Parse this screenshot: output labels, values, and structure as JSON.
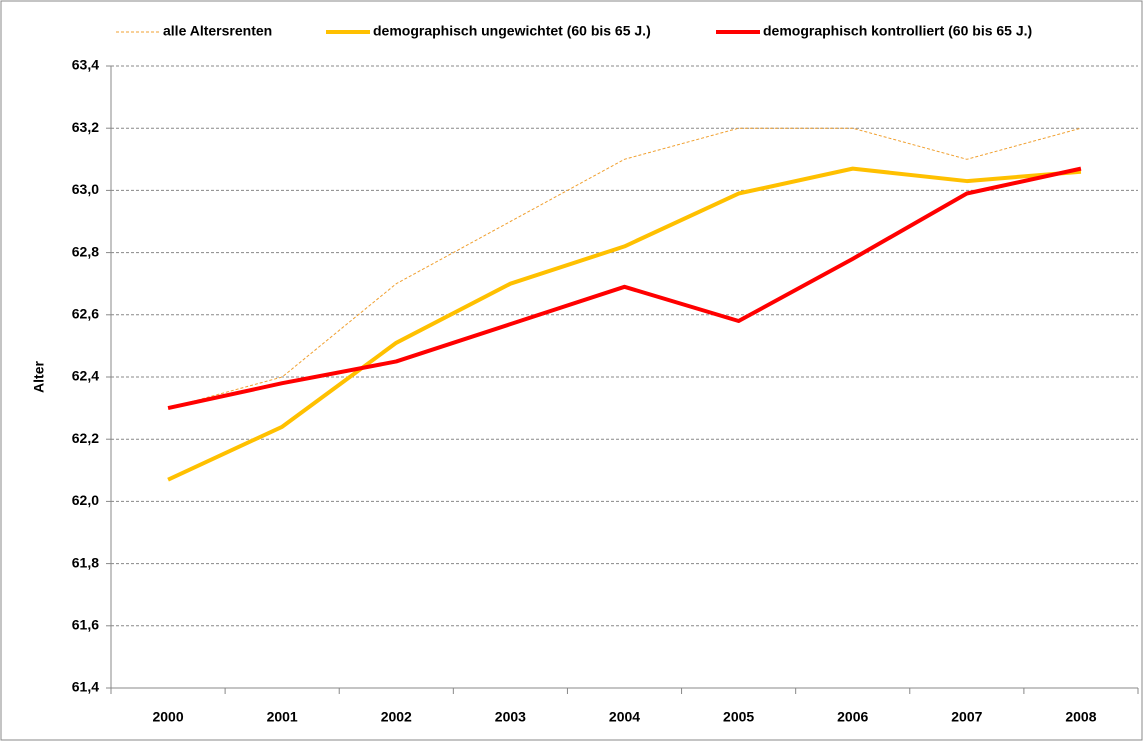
{
  "chart_data": {
    "type": "line",
    "y_label": "Alter",
    "categories": [
      "2000",
      "2001",
      "2002",
      "2003",
      "2004",
      "2005",
      "2006",
      "2007",
      "2008"
    ],
    "series": [
      {
        "name": "alle Altersrenten",
        "color": "#f0a030",
        "dashed": true,
        "values": [
          62.3,
          62.4,
          62.7,
          62.9,
          63.1,
          63.2,
          63.2,
          63.1,
          63.2
        ]
      },
      {
        "name": "demographisch ungewichtet (60 bis 65 J.)",
        "color": "#ffc000",
        "dashed": false,
        "values": [
          62.07,
          62.24,
          62.51,
          62.7,
          62.82,
          62.99,
          63.07,
          63.03,
          63.06
        ]
      },
      {
        "name": "demographisch kontrolliert (60 bis 65 J.)",
        "color": "#ff0000",
        "dashed": false,
        "values": [
          62.3,
          62.38,
          62.45,
          62.57,
          62.69,
          62.58,
          62.78,
          62.99,
          63.07
        ]
      }
    ],
    "ylim": [
      61.4,
      63.4
    ],
    "yticks": [
      {
        "value": 61.4,
        "label": "61,4"
      },
      {
        "value": 61.6,
        "label": "61,6"
      },
      {
        "value": 61.8,
        "label": "61,8"
      },
      {
        "value": 62.0,
        "label": "62,0"
      },
      {
        "value": 62.2,
        "label": "62,2"
      },
      {
        "value": 62.4,
        "label": "62,4"
      },
      {
        "value": 62.6,
        "label": "62,6"
      },
      {
        "value": 62.8,
        "label": "62,8"
      },
      {
        "value": 63.0,
        "label": "63,0"
      },
      {
        "value": 63.2,
        "label": "63,2"
      },
      {
        "value": 63.4,
        "label": "63,4"
      }
    ],
    "grid": true,
    "legend": "top"
  }
}
